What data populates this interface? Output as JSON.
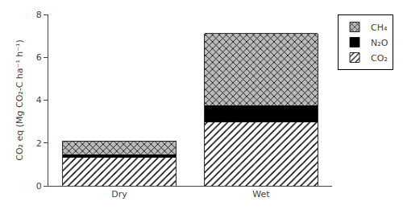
{
  "chart_data": {
    "type": "bar",
    "stacked": true,
    "categories": [
      "Dry",
      "Wet"
    ],
    "series": [
      {
        "name": "CO₂",
        "color": "#ffffff",
        "values": [
          1.35,
          3.0
        ]
      },
      {
        "name": "N₂O",
        "color": "#000000",
        "values": [
          0.1,
          0.75
        ]
      },
      {
        "name": "CH₄",
        "color": "#bbbbbb",
        "values": [
          0.65,
          3.35
        ]
      }
    ],
    "ylabel": "CO₂ eq (Mg CO₂-C ha⁻¹ h⁻¹)",
    "ylim": [
      0,
      8
    ],
    "yticks": [
      0,
      2,
      4,
      6,
      8
    ],
    "grid": false,
    "legend": "upper right"
  }
}
